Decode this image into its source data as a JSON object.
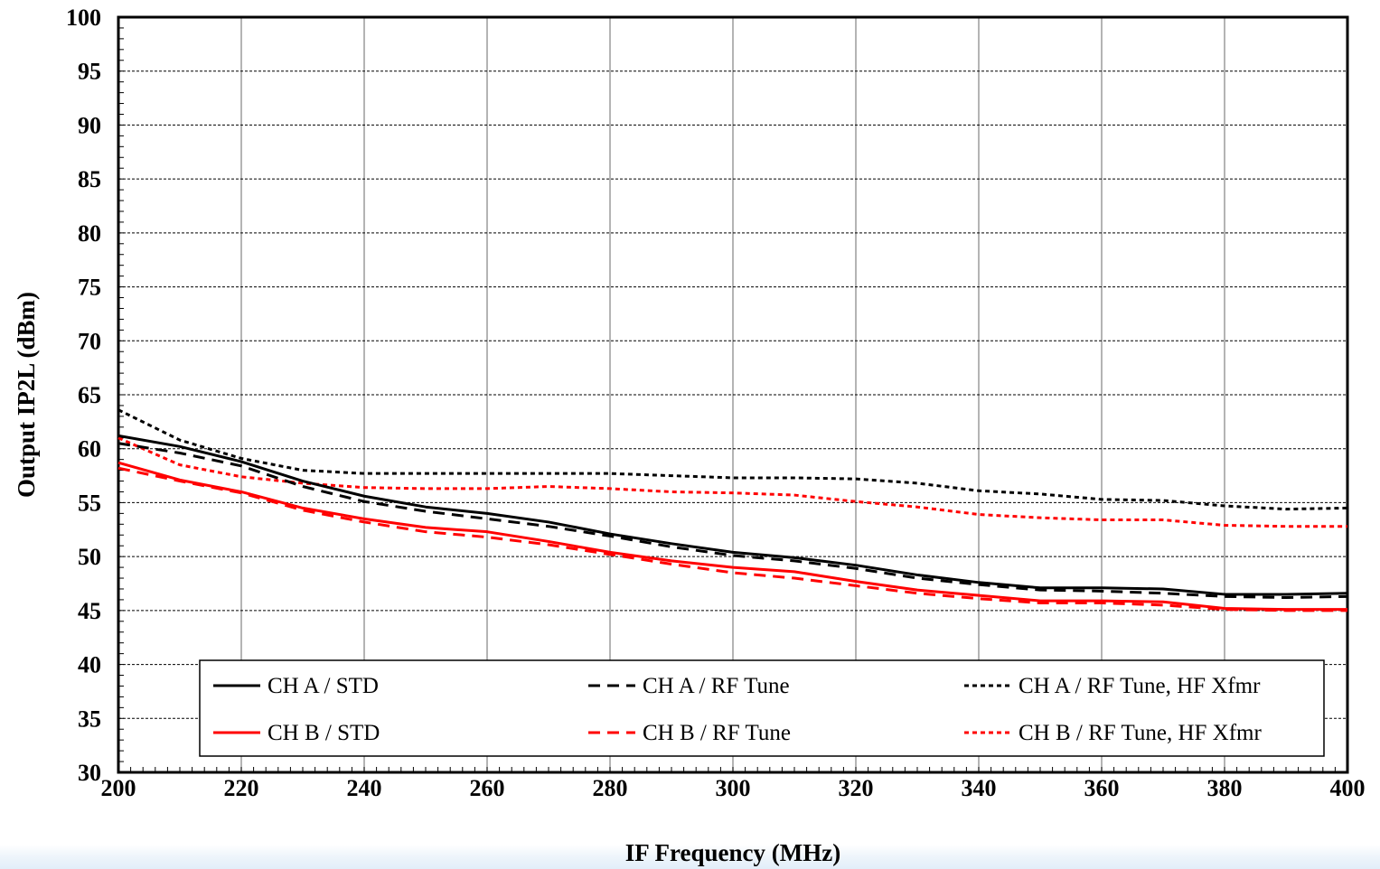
{
  "chart_data": {
    "type": "line",
    "title": "",
    "xlabel": "IF Frequency (MHz)",
    "ylabel": "Output IP2L (dBm)",
    "xlim": [
      200,
      400
    ],
    "ylim": [
      30,
      100
    ],
    "x_ticks": [
      200,
      220,
      240,
      260,
      280,
      300,
      320,
      340,
      360,
      380,
      400
    ],
    "y_ticks": [
      30,
      35,
      40,
      45,
      50,
      55,
      60,
      65,
      70,
      75,
      80,
      85,
      90,
      95,
      100
    ],
    "grid": {
      "vertical": "solid gray",
      "horizontal": "dashed black"
    },
    "legend_position": "bottom",
    "x": [
      200,
      210,
      220,
      230,
      240,
      250,
      260,
      270,
      280,
      290,
      300,
      310,
      320,
      330,
      340,
      350,
      360,
      370,
      380,
      390,
      400
    ],
    "series": [
      {
        "name": "CH A /  STD",
        "color": "#000000",
        "dash": "solid",
        "values": [
          61.2,
          60.2,
          58.8,
          57.0,
          55.6,
          54.6,
          54.0,
          53.2,
          52.1,
          51.2,
          50.4,
          49.9,
          49.2,
          48.3,
          47.6,
          47.1,
          47.1,
          47.0,
          46.5,
          46.5,
          46.6
        ]
      },
      {
        "name": "CH A /  RF Tune",
        "color": "#000000",
        "dash": "dashed",
        "values": [
          60.5,
          59.6,
          58.4,
          56.5,
          55.1,
          54.2,
          53.5,
          52.8,
          51.9,
          50.9,
          50.1,
          49.6,
          48.9,
          48.0,
          47.4,
          46.9,
          46.8,
          46.6,
          46.3,
          46.2,
          46.3
        ]
      },
      {
        "name": "CH A /  RF Tune, HF Xfmr",
        "color": "#000000",
        "dash": "dotted",
        "values": [
          63.6,
          60.8,
          59.1,
          58.0,
          57.7,
          57.7,
          57.7,
          57.7,
          57.7,
          57.5,
          57.3,
          57.3,
          57.2,
          56.8,
          56.1,
          55.8,
          55.3,
          55.2,
          54.7,
          54.4,
          54.5
        ]
      },
      {
        "name": "CH B /  STD",
        "color": "#ff0000",
        "dash": "solid",
        "values": [
          58.7,
          57.1,
          56.0,
          54.5,
          53.5,
          52.7,
          52.3,
          51.4,
          50.4,
          49.6,
          49.0,
          48.6,
          47.7,
          46.9,
          46.4,
          45.9,
          45.9,
          45.8,
          45.2,
          45.1,
          45.1
        ]
      },
      {
        "name": "CH B /  RF Tune",
        "color": "#ff0000",
        "dash": "dashed",
        "values": [
          58.2,
          57.0,
          55.9,
          54.3,
          53.2,
          52.3,
          51.8,
          51.1,
          50.2,
          49.3,
          48.5,
          48.0,
          47.3,
          46.6,
          46.1,
          45.7,
          45.7,
          45.5,
          45.1,
          45.0,
          45.0
        ]
      },
      {
        "name": "CH B /  RF Tune, HF Xfmr",
        "color": "#ff0000",
        "dash": "dotted",
        "values": [
          61.0,
          58.5,
          57.4,
          56.8,
          56.4,
          56.3,
          56.3,
          56.5,
          56.3,
          56.0,
          55.9,
          55.7,
          55.1,
          54.6,
          53.9,
          53.6,
          53.4,
          53.4,
          52.9,
          52.8,
          52.8
        ]
      }
    ]
  }
}
